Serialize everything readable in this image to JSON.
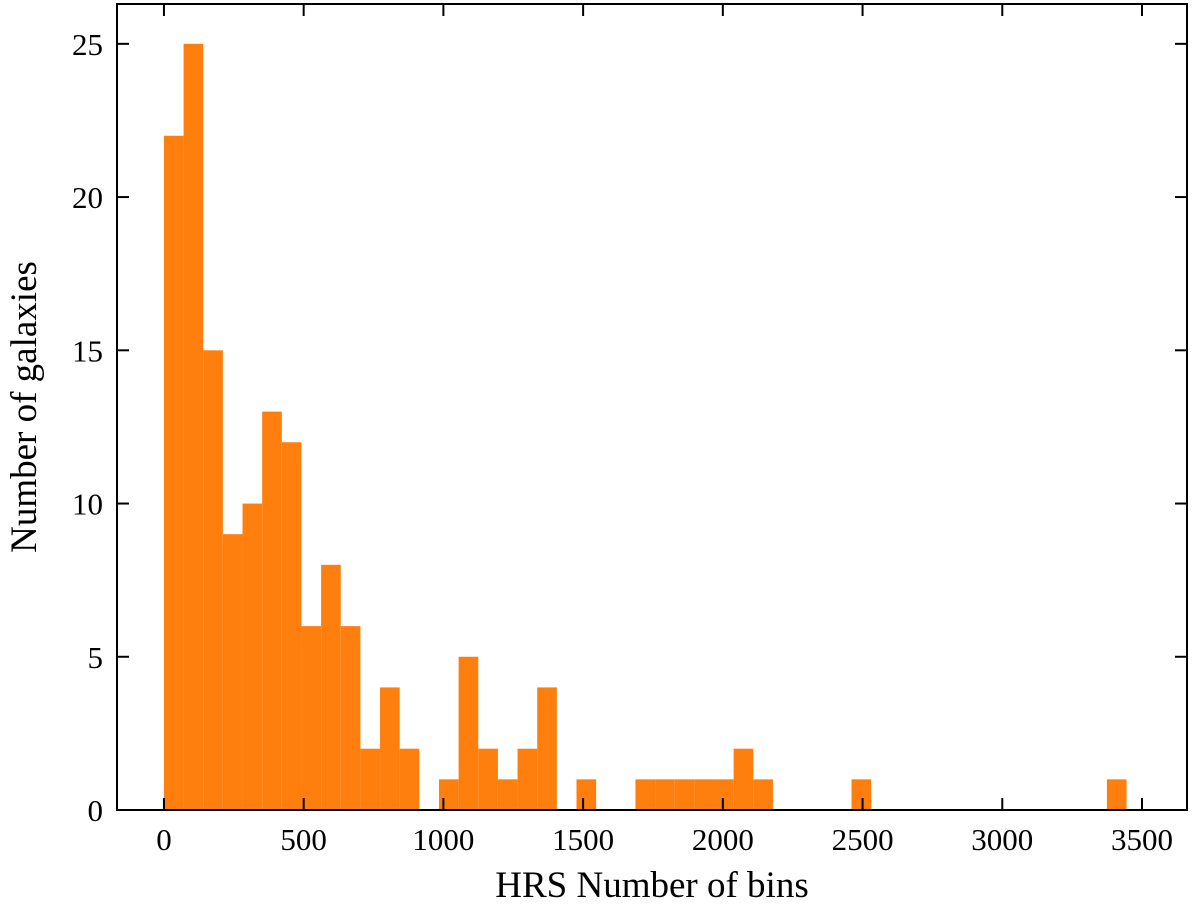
{
  "chart_data": {
    "type": "histogram",
    "xlabel": "HRS Number of bins",
    "ylabel": "Number of galaxies",
    "color": "#ff7f0e",
    "bins": [
      0,
      70.3,
      140.6,
      210.9,
      281.2,
      351.5,
      421.8,
      492.1,
      562.4,
      632.7,
      703,
      773.3,
      843.6,
      913.9,
      984.2,
      1054.5,
      1124.8,
      1195.1,
      1265.4,
      1335.7,
      1406,
      1476.3,
      1546.6,
      1616.9,
      1687.2,
      1757.5,
      1827.8,
      1898.1,
      1968.4,
      2038.7,
      2109,
      2179.3,
      2249.6,
      2319.9,
      2390.2,
      2460.5,
      2530.8,
      2601.1,
      2671.4,
      2741.7,
      2812,
      2882.3,
      2952.6,
      3022.9,
      3093.2,
      3163.5,
      3233.8,
      3304.1,
      3374.4,
      3444.7
    ],
    "counts": [
      22,
      25,
      15,
      9,
      10,
      13,
      12,
      6,
      8,
      6,
      2,
      4,
      2,
      0,
      1,
      5,
      2,
      1,
      2,
      4,
      0,
      1,
      0,
      0,
      1,
      1,
      1,
      1,
      1,
      2,
      1,
      0,
      0,
      0,
      0,
      1,
      0,
      0,
      0,
      0,
      0,
      0,
      0,
      0,
      0,
      0,
      0,
      0,
      1
    ],
    "xlim": [
      -168,
      3661
    ],
    "ylim": [
      0,
      26.3
    ],
    "xticks": [
      0,
      500,
      1000,
      1500,
      2000,
      2500,
      3000,
      3500
    ],
    "yticks": [
      0,
      5,
      10,
      15,
      20,
      25
    ]
  }
}
